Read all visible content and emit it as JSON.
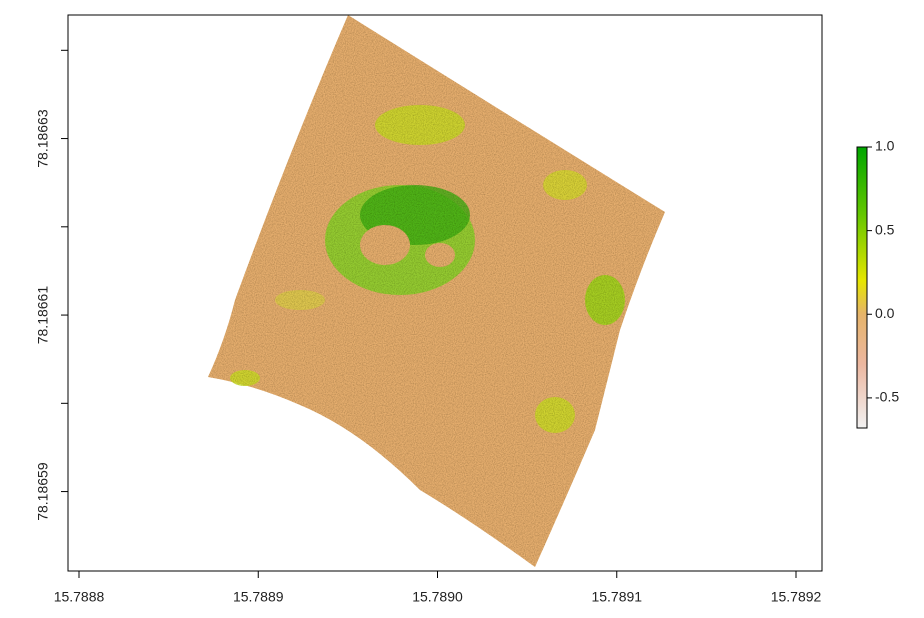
{
  "chart_data": {
    "type": "raster",
    "xlim": [
      15.78879386,
      15.7892145
    ],
    "xticks": [
      {
        "value": 15.7888,
        "label": "15.7888"
      },
      {
        "value": 15.7889,
        "label": "15.7889"
      },
      {
        "value": 15.789,
        "label": "15.7890"
      },
      {
        "value": 15.7891,
        "label": "15.7891"
      },
      {
        "value": 15.7892,
        "label": "15.7892"
      }
    ],
    "ylim": [
      78.186581,
      78.186644
    ],
    "yticks": [
      {
        "value": 78.18659,
        "label": "78.18659"
      },
      {
        "value": 78.1866,
        "label": null
      },
      {
        "value": 78.18661,
        "label": "78.18661"
      },
      {
        "value": 78.18662,
        "label": null
      },
      {
        "value": 78.18663,
        "label": "78.18663"
      },
      {
        "value": 78.18664,
        "label": null
      }
    ],
    "colorbar": {
      "lim": [
        -0.68,
        1.0
      ],
      "ticks": [
        {
          "value": 1.0,
          "label": "1.0"
        },
        {
          "value": 0.5,
          "label": "0.5"
        },
        {
          "value": 0.0,
          "label": "0.0"
        },
        -0.5
      ],
      "stops": [
        {
          "value": -0.68,
          "color": "#f2f2f2"
        },
        {
          "value": -0.3,
          "color": "#ecb7a0"
        },
        {
          "value": 0.0,
          "color": "#e6b46a"
        },
        {
          "value": 0.2,
          "color": "#e6e600"
        },
        {
          "value": 0.6,
          "color": "#63c600"
        },
        {
          "value": 1.0,
          "color": "#00a600"
        }
      ]
    }
  }
}
